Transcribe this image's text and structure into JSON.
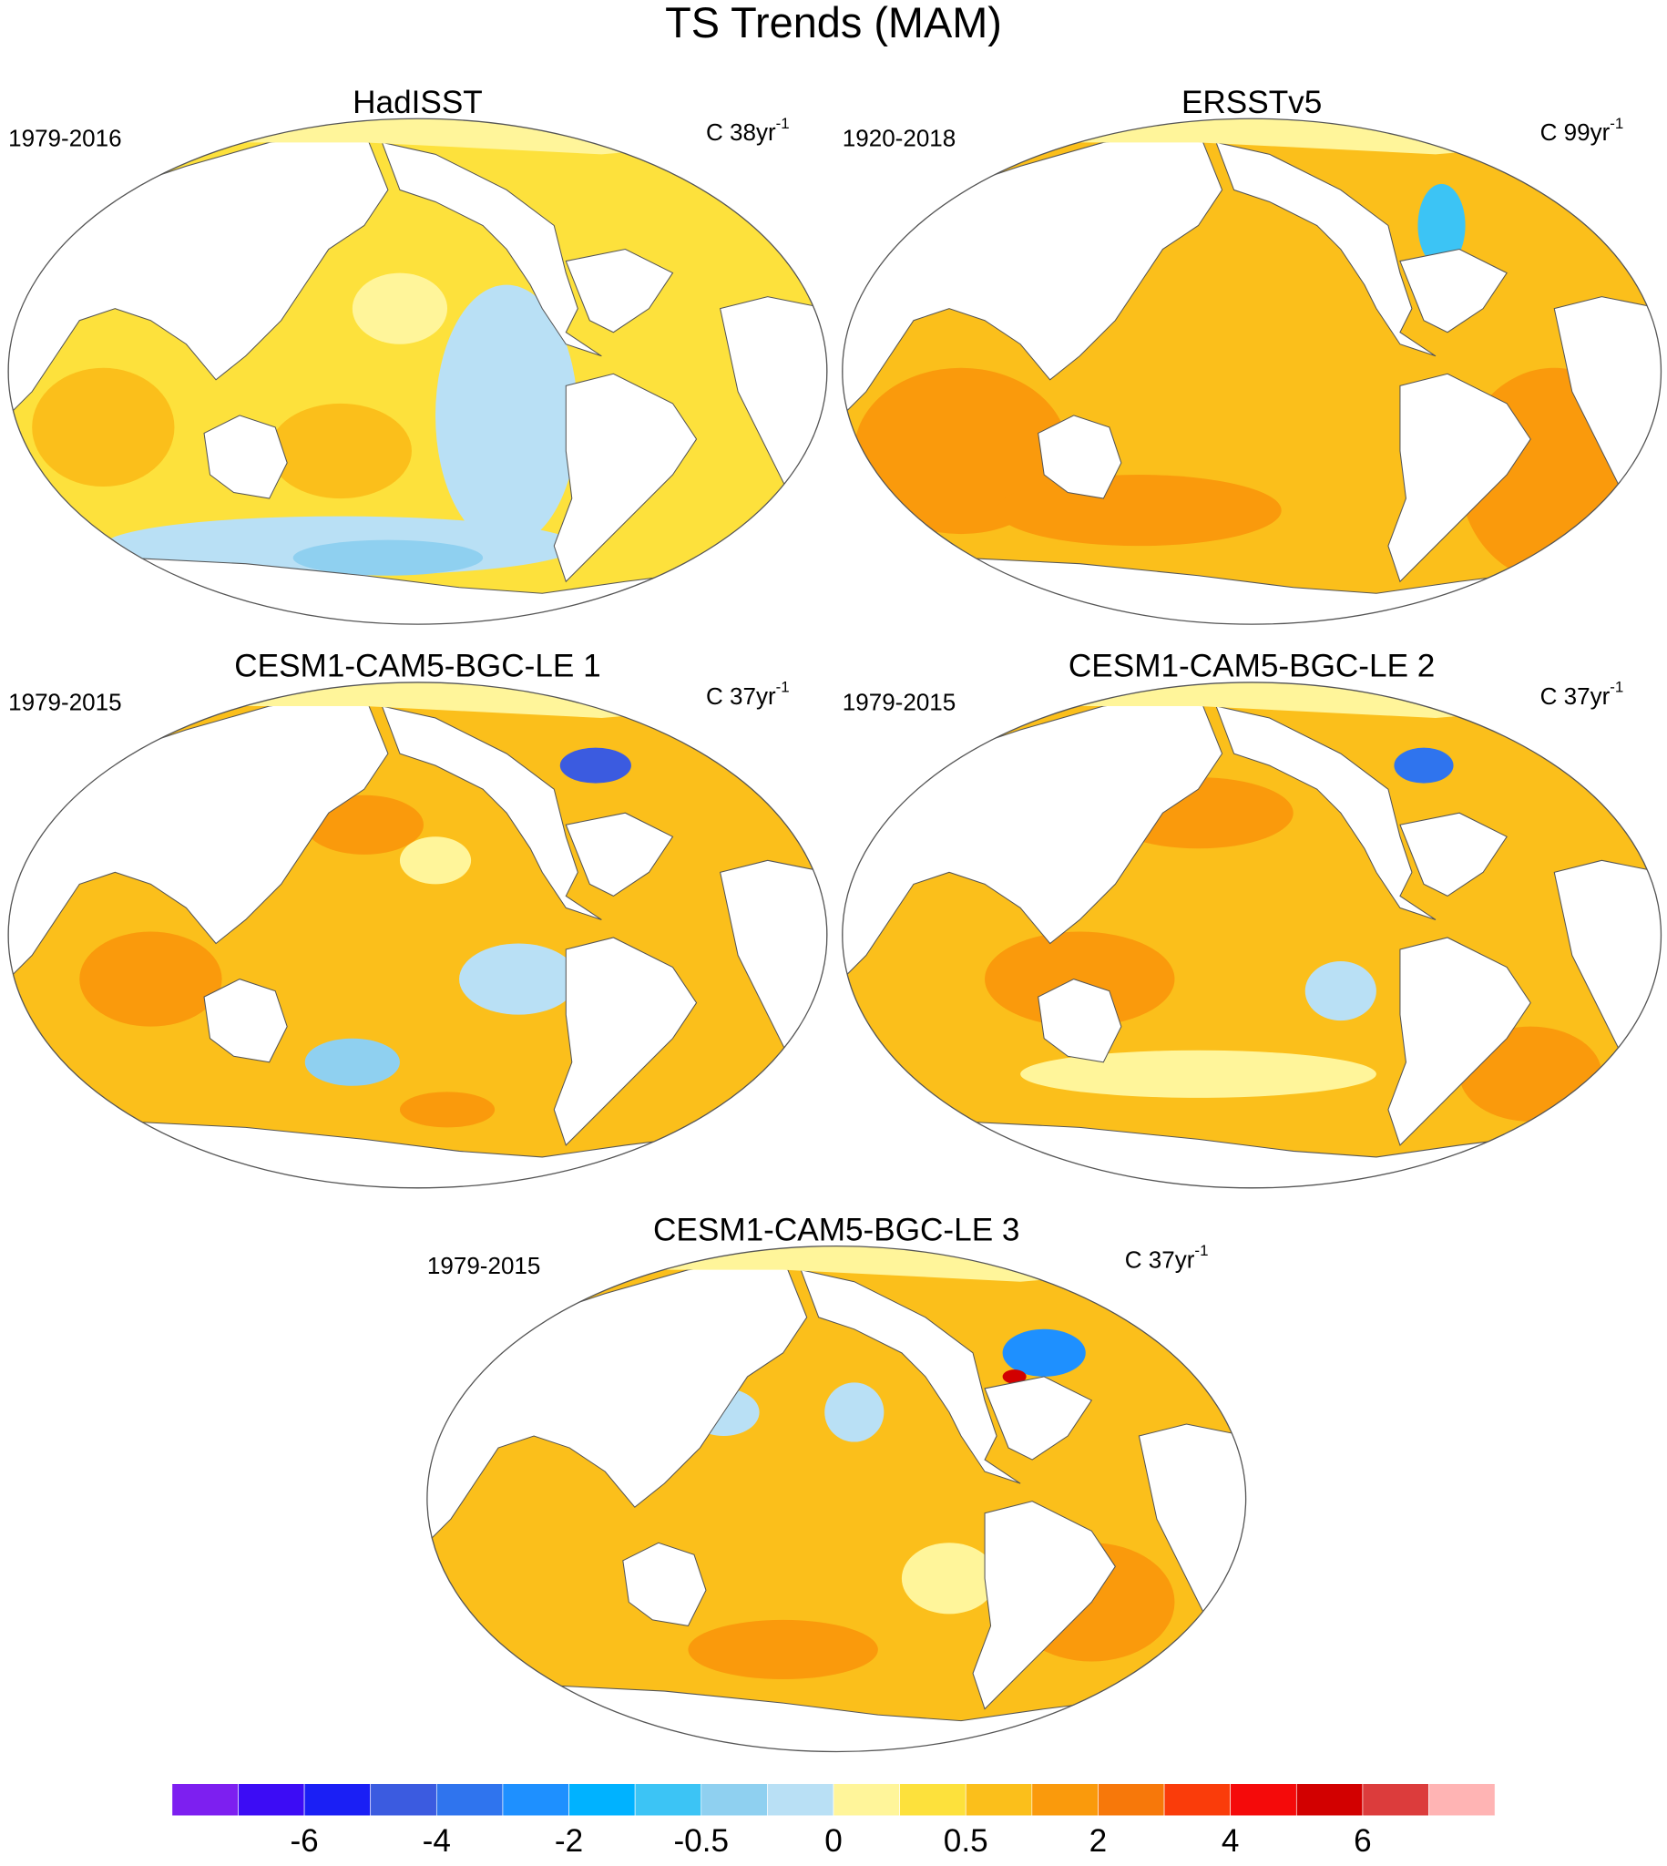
{
  "title": "TS Trends (MAM)",
  "panels": [
    {
      "title": "HadISST",
      "period": "1979-2016",
      "units": "C 38yr",
      "units_exp": "-1"
    },
    {
      "title": "ERSSTv5",
      "period": "1920-2018",
      "units": "C 99yr",
      "units_exp": "-1"
    },
    {
      "title": "CESM1-CAM5-BGC-LE 1",
      "period": "1979-2015",
      "units": "C 37yr",
      "units_exp": "-1"
    },
    {
      "title": "CESM1-CAM5-BGC-LE 2",
      "period": "1979-2015",
      "units": "C 37yr",
      "units_exp": "-1"
    },
    {
      "title": "CESM1-CAM5-BGC-LE 3",
      "period": "1979-2015",
      "units": "C 37yr",
      "units_exp": "-1"
    }
  ],
  "colorbar": {
    "colors": [
      "#7d1ff0",
      "#3c0cf5",
      "#1a1ff5",
      "#3b5be0",
      "#2f74ee",
      "#1e90ff",
      "#00b2ff",
      "#3cc4f5",
      "#8fd0f0",
      "#b9e0f5",
      "#fff59a",
      "#fde13c",
      "#fbbf1b",
      "#fa9a0c",
      "#f7780a",
      "#fa3c0a",
      "#f50a0a",
      "#d20000",
      "#dc3c3c",
      "#ffb4b4"
    ],
    "ticks": [
      -6,
      -4,
      -2,
      -0.5,
      0,
      0.5,
      2,
      4,
      6
    ]
  }
}
